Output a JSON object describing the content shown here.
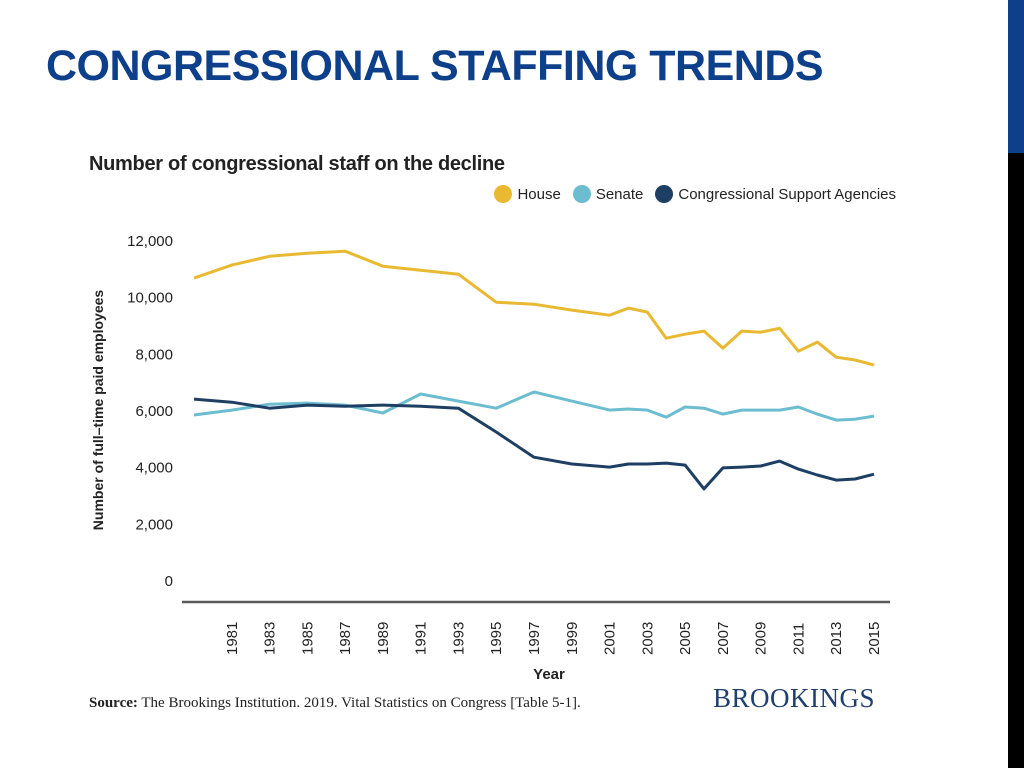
{
  "slide": {
    "title": "CONGRESSIONAL STAFFING TRENDS",
    "accent_color": "#0d3f8a"
  },
  "source": {
    "label": "Source:",
    "text": " The Brookings Institution. 2019. Vital Statistics on Congress [Table 5-1]."
  },
  "brand": {
    "name": "BROOKINGS"
  },
  "chart_data": {
    "type": "line",
    "title": "Number of congressional staff on the decline",
    "xlabel": "Year",
    "ylabel": "Number of full–time paid employees",
    "ylim": [
      0,
      12000
    ],
    "yticks": [
      0,
      2000,
      4000,
      6000,
      8000,
      10000,
      12000
    ],
    "ytick_labels": [
      "0",
      "2,000",
      "4,000",
      "6,000",
      "8,000",
      "10,000",
      "12,000"
    ],
    "xlim": [
      1979,
      2015
    ],
    "xticks": [
      1981,
      1983,
      1985,
      1987,
      1989,
      1991,
      1993,
      1995,
      1997,
      1999,
      2001,
      2003,
      2005,
      2007,
      2009,
      2011,
      2013,
      2015
    ],
    "grid": false,
    "legend_position": "top-right",
    "x": [
      1979,
      1981,
      1983,
      1985,
      1987,
      1989,
      1991,
      1993,
      1995,
      1997,
      1999,
      2001,
      2002,
      2003,
      2004,
      2005,
      2006,
      2007,
      2008,
      2009,
      2010,
      2011,
      2012,
      2013,
      2014,
      2015
    ],
    "series": [
      {
        "name": "House",
        "color": "#e8b931",
        "values": [
          10690,
          11150,
          11460,
          11570,
          11640,
          11110,
          10970,
          10830,
          9840,
          9770,
          9560,
          9380,
          9630,
          9490,
          8570,
          8710,
          8820,
          8220,
          8820,
          8780,
          8920,
          8110,
          8430,
          7900,
          7800,
          7620
        ]
      },
      {
        "name": "Senate",
        "color": "#6dbdd0",
        "values": [
          5860,
          6030,
          6240,
          6280,
          6210,
          5930,
          6600,
          6350,
          6100,
          6670,
          6350,
          6030,
          6070,
          6030,
          5780,
          6140,
          6100,
          5890,
          6030,
          6030,
          6030,
          6140,
          5890,
          5680,
          5710,
          5820
        ]
      },
      {
        "name": "Congressional Support Agencies",
        "color": "#1e3f63",
        "values": [
          6420,
          6310,
          6100,
          6210,
          6170,
          6210,
          6170,
          6100,
          5260,
          4370,
          4130,
          4020,
          4130,
          4130,
          4160,
          4090,
          3250,
          3990,
          4020,
          4060,
          4230,
          3950,
          3740,
          3560,
          3600,
          3770
        ]
      }
    ]
  }
}
